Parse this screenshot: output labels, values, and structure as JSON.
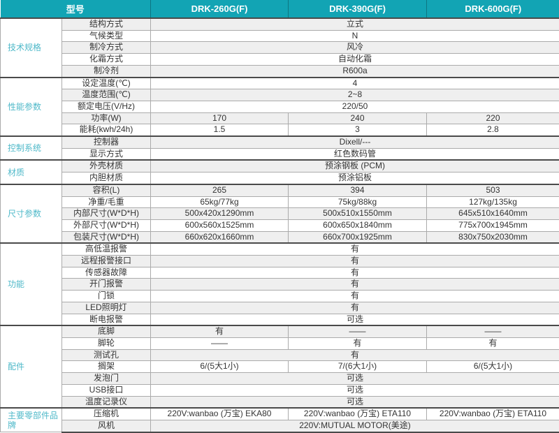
{
  "table": {
    "header": {
      "model_label": "型号",
      "models": [
        "DRK-260G(F)",
        "DRK-390G(F)",
        "DRK-600G(F)"
      ]
    },
    "sections": [
      {
        "group": "技术规格",
        "rows": [
          {
            "label": "结构方式",
            "values": [
              "立式"
            ]
          },
          {
            "label": "气候类型",
            "values": [
              "N"
            ]
          },
          {
            "label": "制冷方式",
            "values": [
              "风冷"
            ]
          },
          {
            "label": "化霜方式",
            "values": [
              "自动化霜"
            ]
          },
          {
            "label": "制冷剂",
            "values": [
              "R600a"
            ]
          }
        ]
      },
      {
        "group": "性能参数",
        "rows": [
          {
            "label": "设定温度(℃)",
            "values": [
              "4"
            ]
          },
          {
            "label": "温度范围(℃)",
            "values": [
              "2~8"
            ]
          },
          {
            "label": "额定电压(V/Hz)",
            "values": [
              "220/50"
            ]
          },
          {
            "label": "功率(W)",
            "values": [
              "170",
              "240",
              "220"
            ]
          },
          {
            "label": "能耗(kwh/24h)",
            "values": [
              "1.5",
              "3",
              "2.8"
            ]
          }
        ]
      },
      {
        "group": "控制系统",
        "rows": [
          {
            "label": "控制器",
            "values": [
              "Dixell/---"
            ]
          },
          {
            "label": "显示方式",
            "values": [
              "红色数码管"
            ]
          }
        ]
      },
      {
        "group": "材质",
        "rows": [
          {
            "label": "外壳材质",
            "values": [
              "预涂钢板 (PCM)"
            ]
          },
          {
            "label": "内胆材质",
            "values": [
              "预涂铝板"
            ]
          }
        ]
      },
      {
        "group": "尺寸参数",
        "rows": [
          {
            "label": "容积(L)",
            "values": [
              "265",
              "394",
              "503"
            ]
          },
          {
            "label": "净重/毛重",
            "values": [
              "65kg/77kg",
              "75kg/88kg",
              "127kg/135kg"
            ]
          },
          {
            "label": "内部尺寸(W*D*H)",
            "values": [
              "500x420x1290mm",
              "500x510x1550mm",
              "645x510x1640mm"
            ]
          },
          {
            "label": "外部尺寸(W*D*H)",
            "values": [
              "600x560x1525mm",
              "600x650x1840mm",
              "775x700x1945mm"
            ]
          },
          {
            "label": "包装尺寸(W*D*H)",
            "values": [
              "660x620x1660mm",
              "660x700x1925mm",
              "830x750x2030mm"
            ]
          }
        ]
      },
      {
        "group": "功能",
        "rows": [
          {
            "label": "高低温报警",
            "values": [
              "有"
            ]
          },
          {
            "label": "远程报警接口",
            "values": [
              "有"
            ]
          },
          {
            "label": "传感器故障",
            "values": [
              "有"
            ]
          },
          {
            "label": "开门报警",
            "values": [
              "有"
            ]
          },
          {
            "label": "门锁",
            "values": [
              "有"
            ]
          },
          {
            "label": "LED照明灯",
            "values": [
              "有"
            ]
          },
          {
            "label": "断电报警",
            "values": [
              "可选"
            ]
          }
        ]
      },
      {
        "group": "配件",
        "rows": [
          {
            "label": "底脚",
            "values": [
              "有",
              "——",
              "——"
            ]
          },
          {
            "label": "脚轮",
            "values": [
              "——",
              "有",
              "有"
            ]
          },
          {
            "label": "测试孔",
            "values": [
              "有"
            ]
          },
          {
            "label": "搁架",
            "values": [
              "6/(5大1小)",
              "7/(6大1小)",
              "6/(5大1小)"
            ]
          },
          {
            "label": "发泡门",
            "values": [
              "可选"
            ]
          },
          {
            "label": "USB接口",
            "values": [
              "可选"
            ]
          },
          {
            "label": "温度记录仪",
            "values": [
              "可选"
            ]
          }
        ]
      },
      {
        "group": "主要零部件品牌",
        "rows": [
          {
            "label": "压缩机",
            "values": [
              "220V:wanbao (万宝) EKA80",
              "220V:wanbao (万宝) ETA110",
              "220V:wanbao (万宝) ETA110"
            ]
          },
          {
            "label": "风机",
            "values": [
              "220V:MUTUAL MOTOR(美途)"
            ]
          }
        ]
      }
    ]
  },
  "colors": {
    "header_bg": "#12a4b4",
    "header_text": "#ffffff",
    "group_text": "#4fb9c9",
    "stripe": "#efefef",
    "row_border": "#ababab",
    "section_border": "#4a4a4a",
    "body_text": "#333333"
  }
}
